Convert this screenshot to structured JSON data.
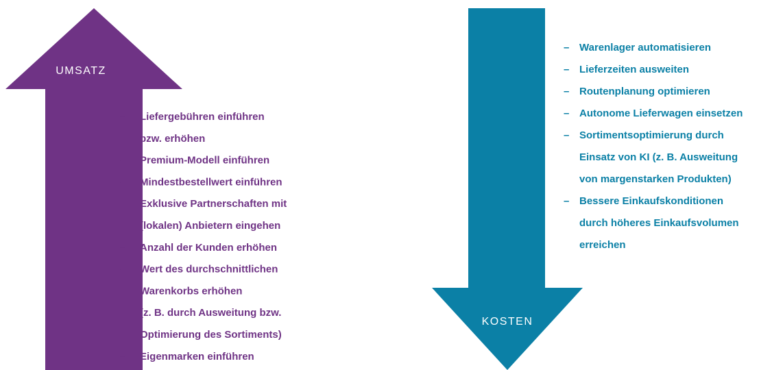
{
  "arrows": [
    {
      "label": "UMSATZ",
      "items": [
        [
          "Liefergebühren einführen",
          "bzw. erhöhen"
        ],
        [
          "Premium-Modell einführen"
        ],
        [
          "Mindestbestellwert einführen"
        ],
        [
          "Exklusive Partnerschaften mit",
          "(lokalen) Anbietern eingehen"
        ],
        [
          "Anzahl der Kunden erhöhen"
        ],
        [
          "Wert des durchschnittlichen",
          "Warenkorbs erhöhen",
          "(z. B. durch Ausweitung bzw.",
          "Optimierung des Sortiments)"
        ],
        [
          "Eigenmarken einführen"
        ]
      ]
    },
    {
      "label": "KOSTEN",
      "items": [
        [
          "Warenlager automatisieren"
        ],
        [
          "Lieferzeiten ausweiten"
        ],
        [
          "Routenplanung optimieren"
        ],
        [
          "Autonome Lieferwagen einsetzen"
        ],
        [
          "Sortimentsoptimierung durch",
          "Einsatz von KI (z. B. Ausweitung",
          "von margenstarken Produkten)"
        ],
        [
          "Bessere Einkaufskonditionen",
          "durch höheres Einkaufsvolumen",
          "erreichen"
        ]
      ]
    }
  ]
}
